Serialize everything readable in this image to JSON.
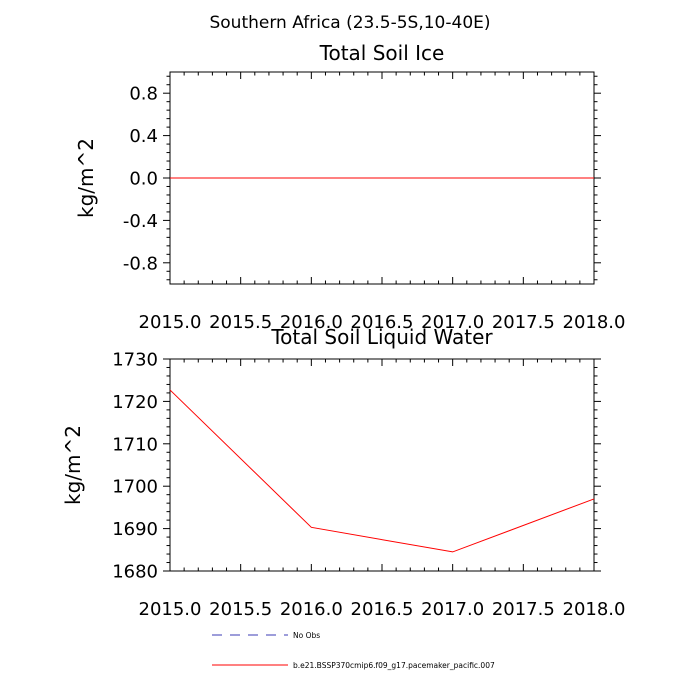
{
  "page_title": "Southern Africa (23.5-5S,10-40E)",
  "colors": {
    "series": "#ff0000",
    "obs": "#3b3bb5",
    "axis": "#000000"
  },
  "legend": {
    "obs_label": "No Obs",
    "model_label": "b.e21.BSSP370cmip6.f09_g17.pacemaker_pacific.007"
  },
  "chart_data": [
    {
      "type": "line",
      "title": "Total Soil Ice",
      "xlabel": "",
      "ylabel": "kg/m^2",
      "xlim": [
        2015.0,
        2018.0
      ],
      "ylim": [
        -1.0,
        1.0
      ],
      "x_ticks": [
        "2015.0",
        "2015.5",
        "2016.0",
        "2016.5",
        "2017.0",
        "2017.5",
        "2018.0"
      ],
      "y_ticks": [
        "0.8",
        "0.4",
        "0.0",
        "-0.4",
        "-0.8"
      ],
      "y_tick_values": [
        0.8,
        0.4,
        0.0,
        -0.4,
        -0.8
      ],
      "grid": false,
      "series": [
        {
          "name": "b.e21.BSSP370cmip6.f09_g17.pacemaker_pacific.007",
          "x": [
            2015.0,
            2016.0,
            2017.0,
            2018.0
          ],
          "values": [
            0.0,
            0.0,
            0.0,
            0.0
          ]
        }
      ]
    },
    {
      "type": "line",
      "title": "Total Soil Liquid Water",
      "xlabel": "",
      "ylabel": "kg/m^2",
      "xlim": [
        2015.0,
        2018.0
      ],
      "ylim": [
        1680,
        1730
      ],
      "x_ticks": [
        "2015.0",
        "2015.5",
        "2016.0",
        "2016.5",
        "2017.0",
        "2017.5",
        "2018.0"
      ],
      "y_ticks": [
        "1730",
        "1720",
        "1710",
        "1700",
        "1690",
        "1680"
      ],
      "y_tick_values": [
        1730,
        1720,
        1710,
        1700,
        1690,
        1680
      ],
      "grid": false,
      "series": [
        {
          "name": "b.e21.BSSP370cmip6.f09_g17.pacemaker_pacific.007",
          "x": [
            2015.0,
            2016.0,
            2017.0,
            2018.0
          ],
          "values": [
            1722.7,
            1690.3,
            1684.5,
            1697.0
          ]
        }
      ]
    }
  ]
}
